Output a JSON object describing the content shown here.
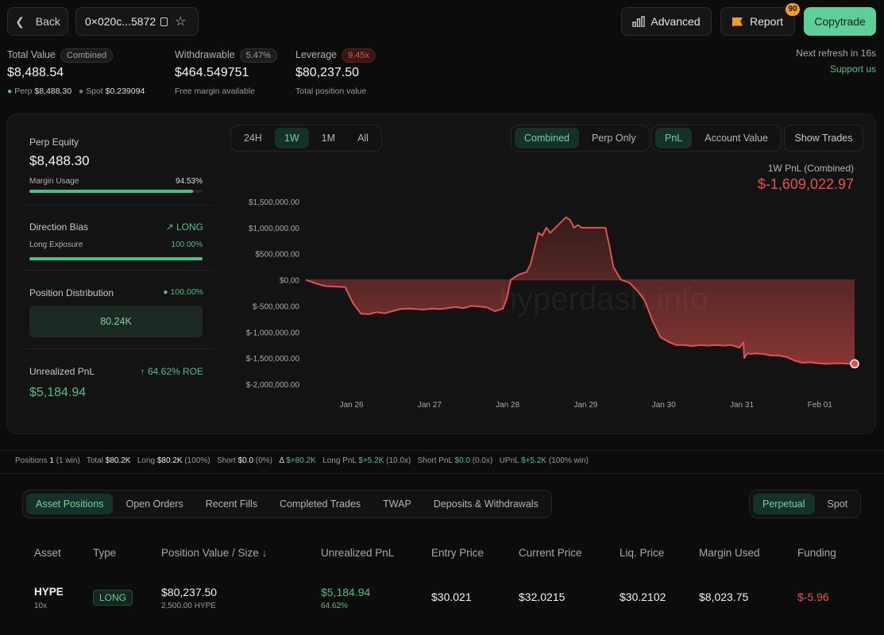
{
  "header": {
    "back": "Back",
    "address": "0×020c...5872",
    "advanced": "Advanced",
    "report": "Report",
    "report_badge": "90",
    "copytrade": "Copytrade"
  },
  "summary": {
    "total_value_label": "Total Value",
    "total_value_tag": "Combined",
    "total_value": "$8,488.54",
    "perp_label": "Perp",
    "perp_value": "$8,488.30",
    "spot_label": "Spot",
    "spot_value": "$0.239094",
    "withdrawable_label": "Withdrawable",
    "withdrawable_tag": "5.47%",
    "withdrawable": "$464.549751",
    "withdrawable_sub": "Free margin available",
    "leverage_label": "Leverage",
    "leverage_tag": "9.45x",
    "leverage": "$80,237.50",
    "leverage_sub": "Total position value",
    "refresh": "Next refresh in 16s",
    "support": "Support us"
  },
  "side": {
    "perp_equity_label": "Perp Equity",
    "perp_equity": "$8,488.30",
    "margin_usage_label": "Margin Usage",
    "margin_usage": "94.53%",
    "margin_usage_frac": 0.9453,
    "direction_label": "Direction Bias",
    "direction": "LONG",
    "long_exposure_label": "Long Exposure",
    "long_exposure": "100.00%",
    "long_exposure_frac": 1.0,
    "position_dist_label": "Position Distribution",
    "position_dist_pct": "100.00%",
    "position_dist_value": "80.24K",
    "upnl_label": "Unrealized PnL",
    "upnl_roe": "↑ 64.62% ROE",
    "upnl": "$5,184.94"
  },
  "controls": {
    "ranges": [
      "24H",
      "1W",
      "1M",
      "All"
    ],
    "active_range": "1W",
    "modes": [
      "Combined",
      "Perp Only"
    ],
    "active_mode": "Combined",
    "metrics": [
      "PnL",
      "Account Value"
    ],
    "active_metric": "PnL",
    "show_trades": "Show Trades"
  },
  "chart_data": {
    "type": "area",
    "title": "1W PnL (Combined)",
    "value_label": "$-1,609,022.97",
    "ylim": [
      -2000000,
      1500000
    ],
    "yticks": [
      "$1,500,000.00",
      "$1,000,000.00",
      "$500,000.00",
      "$0.00",
      "$-500,000.00",
      "$-1,000,000.00",
      "$-1,500,000.00",
      "$-2,000,000.00"
    ],
    "xticks": [
      "Jan 26",
      "Jan 27",
      "Jan 28",
      "Jan 29",
      "Jan 30",
      "Jan 31",
      "Feb 01"
    ],
    "xlim": [
      0,
      700
    ],
    "tick_pos": [
      58,
      157,
      256,
      355,
      454,
      553,
      652
    ],
    "x": [
      0,
      15,
      25,
      40,
      50,
      60,
      70,
      80,
      90,
      100,
      110,
      120,
      130,
      140,
      150,
      160,
      170,
      180,
      190,
      200,
      210,
      220,
      230,
      240,
      250,
      255,
      260,
      270,
      280,
      285,
      290,
      295,
      300,
      305,
      310,
      320,
      330,
      335,
      340,
      345,
      350,
      355,
      360,
      370,
      380,
      385,
      390,
      395,
      400,
      410,
      420,
      430,
      440,
      450,
      460,
      470,
      480,
      490,
      500,
      510,
      520,
      530,
      540,
      550,
      555,
      556,
      560,
      565,
      570,
      580,
      590,
      600,
      610,
      620,
      630,
      640,
      650,
      660,
      670,
      680,
      690,
      696
    ],
    "y": [
      0,
      -80000,
      -120000,
      -130000,
      -140000,
      -450000,
      -650000,
      -660000,
      -620000,
      -640000,
      -600000,
      -560000,
      -550000,
      -560000,
      -570000,
      -550000,
      -560000,
      -540000,
      -520000,
      -540000,
      -500000,
      -510000,
      -530000,
      -600000,
      -550000,
      -350000,
      0,
      100000,
      150000,
      300000,
      600000,
      900000,
      850000,
      1000000,
      900000,
      1050000,
      1200000,
      1150000,
      1000000,
      1050000,
      1000000,
      1000000,
      1000000,
      1000000,
      1000000,
      650000,
      250000,
      120000,
      0,
      -50000,
      -200000,
      -400000,
      -800000,
      -1100000,
      -1190000,
      -1250000,
      -1250000,
      -1270000,
      -1250000,
      -1260000,
      -1250000,
      -1260000,
      -1250000,
      -1300000,
      -1200000,
      -1500000,
      -1410000,
      -1420000,
      -1410000,
      -1420000,
      -1450000,
      -1450000,
      -1480000,
      -1550000,
      -1590000,
      -1580000,
      -1600000,
      -1610000,
      -1600000,
      -1600000,
      -1610000,
      -1609023
    ]
  },
  "stats": {
    "positions_label": "Positions",
    "positions": "1",
    "positions_win": "(1 win)",
    "total_label": "Total",
    "total": "$80.2K",
    "long_label": "Long",
    "long": "$80.2K",
    "long_pct": "(100%)",
    "short_label": "Short",
    "short": "$0.0",
    "short_pct": "(0%)",
    "delta_label": "Δ",
    "delta": "$+80.2K",
    "longpnl_label": "Long PnL",
    "longpnl": "$+5.2K",
    "longpnl_x": "(10.0x)",
    "shortpnl_label": "Short PnL",
    "shortpnl": "$0.0",
    "shortpnl_x": "(0.0x)",
    "upnl_label": "UPnL",
    "upnl": "$+5.2K",
    "upnl_win": "(100% win)"
  },
  "tabs": {
    "items": [
      "Asset Positions",
      "Open Orders",
      "Recent Fills",
      "Completed Trades",
      "TWAP",
      "Deposits & Withdrawals"
    ],
    "active": "Asset Positions",
    "market": [
      "Perpetual",
      "Spot"
    ],
    "active_market": "Perpetual"
  },
  "table": {
    "headers": [
      "Asset",
      "Type",
      "Position Value / Size",
      "Unrealized PnL",
      "Entry Price",
      "Current Price",
      "Liq. Price",
      "Margin Used",
      "Funding"
    ],
    "row": {
      "asset": "HYPE",
      "lev": "10x",
      "type": "LONG",
      "value": "$80,237.50",
      "size": "2,500.00 HYPE",
      "upnl": "$5,184.94",
      "upnl_pct": "64.62%",
      "entry": "$30.021",
      "current": "$32.0215",
      "liq": "$30.2102",
      "margin": "$8,023.75",
      "funding": "$-5.96"
    }
  },
  "watermark": "hyperdash.info"
}
